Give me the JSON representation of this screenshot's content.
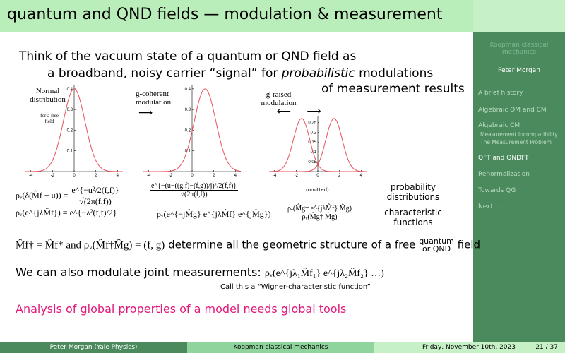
{
  "header": {
    "title": "quantum and QND fields — modulation & measurement"
  },
  "sidebar": {
    "talk": "Koopman classical mechanics",
    "author": "Peter Morgan",
    "items": [
      "A brief history",
      "Algebraic QM and CM",
      "Algebraic CM",
      "Measurement Incompatibility",
      "The Measurement Problem",
      "QFT and QNDFT",
      "Renormalization",
      "Towards QG",
      "Next ..."
    ]
  },
  "body": {
    "intro_line1": "Think of the vacuum state of a quantum or QND field as",
    "intro_line2": "a broadband, noisy carrier “signal” for",
    "intro_em": "probabilistic",
    "intro_line2_end": "modulations",
    "intro_line3": "of measurement results",
    "plots": [
      {
        "label": "Normal distribution",
        "note": "for a free field",
        "xticks": [
          -4,
          -2,
          0,
          2,
          4
        ],
        "yticks": [
          0.1,
          0.2,
          0.3,
          0.4
        ],
        "xlim": [
          -4.5,
          4.5
        ],
        "ylim": [
          0,
          0.42
        ],
        "curves": [
          {
            "center": 0,
            "height": 0.4,
            "sigma": 1
          }
        ]
      },
      {
        "label": "g-coherent modulation",
        "xticks": [
          -4,
          -2,
          0,
          2,
          4
        ],
        "yticks": [
          0.1,
          0.2,
          0.3,
          0.4
        ],
        "xlim": [
          -4.5,
          4.5
        ],
        "ylim": [
          0,
          0.42
        ],
        "curves": [
          {
            "center": 1.2,
            "height": 0.4,
            "sigma": 1
          }
        ]
      },
      {
        "label": "g-raised modulation",
        "xticks": [
          -4,
          -2,
          0,
          2,
          4
        ],
        "yticks": [
          0.05,
          0.1,
          0.15,
          0.2,
          0.25
        ],
        "xlim": [
          -4.5,
          4.5
        ],
        "ylim": [
          0,
          0.28
        ],
        "curves": [
          {
            "center": -1.5,
            "height": 0.27,
            "sigma": 0.75
          },
          {
            "center": 1.5,
            "height": 0.27,
            "sigma": 0.75
          }
        ]
      }
    ],
    "omitted": "(omitted)",
    "formula_pd_1_lhs": "ρᵥ(δ(M̂f − u)) =",
    "formula_pd_1_num": "e^{−u²/2(f,f)}",
    "formula_pd_1_den": "√(2π(f,f))",
    "formula_pd_2_num": "e^{−(u−((g,f)−(f,g))/j)²/2(f,f)}",
    "formula_pd_2_den": "√(2π(f,f))",
    "formula_cf_1": "ρᵥ(e^{jλM̂f}) = e^{−λ²(f,f)/2}",
    "formula_cf_2": "ρᵥ(e^{−jM̂g} e^{jλM̂f} e^{jM̂g})",
    "formula_cf_3_num": "ρᵥ(M̂g† e^{jλM̂f} M̂g)",
    "formula_cf_3_den": "ρᵥ(M̂g† M̂g)",
    "side_label_1": "probability distributions",
    "side_label_2": "characteristic functions",
    "structure_formula": "M̂f† = M̂f* and ρᵥ(M̂f†M̂g) = (f, g)",
    "structure_text": "determine all the geometric structure of a free",
    "structure_sup": "quantum",
    "structure_sub": "or QND",
    "structure_end": "field",
    "joint_text": "We can also modulate joint measurements:",
    "joint_formula": "ρᵥ(e^{jλ₁M̂f₁} e^{jλ₂M̂f₂} …)",
    "joint_note": "Call this a “Wigner-characteristic function”",
    "conclusion": "Analysis of global properties of a model needs global tools"
  },
  "footer": {
    "author": "Peter Morgan  (Yale Physics)",
    "talk": "Koopman classical mechanics",
    "date": "Friday, November 10th, 2023",
    "page": "21 / 37"
  }
}
